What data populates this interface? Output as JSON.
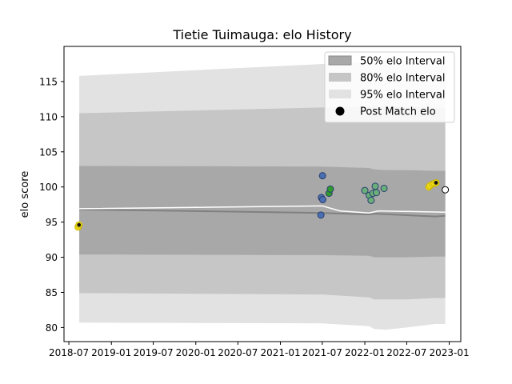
{
  "chart_data": {
    "type": "line",
    "title": "Tietie Tuimauga: elo History",
    "xlabel": "",
    "ylabel": "elo score",
    "xlim": [
      "2018-06-10",
      "2023-02-20"
    ],
    "ylim": [
      78,
      120
    ],
    "x_ticks": [
      "2018-07",
      "2019-01",
      "2019-07",
      "2020-01",
      "2020-07",
      "2021-01",
      "2021-07",
      "2022-01",
      "2022-07",
      "2023-01"
    ],
    "x_tick_labels": [
      "2018-07",
      "2019-01",
      "2019-07",
      "2020-01",
      "2020-07",
      "2021-01",
      "2021-07",
      "2022-01",
      "2022-07",
      "2023-01"
    ],
    "y_ticks": [
      80,
      85,
      90,
      95,
      100,
      105,
      110,
      115
    ],
    "grid": false,
    "legend": {
      "position": "top-right",
      "entries": [
        "50% elo Interval",
        "80% elo Interval",
        "95% elo Interval",
        "Post Match elo"
      ]
    },
    "colors": {
      "band_50": "#a8a8a8",
      "band_80": "#c6c6c6",
      "band_95": "#e2e2e2",
      "mean_line": "#808080",
      "highlight_line": "#ffffff",
      "point_yellow": "#f5e11c",
      "point_blue": "#4a6fb0",
      "point_green": "#6aae7a",
      "point_white": "#ffffff"
    },
    "bands": {
      "x": [
        "2018-08-15",
        "2021-07-01",
        "2022-01-20",
        "2022-02-10",
        "2022-04-01",
        "2022-07-01",
        "2022-11-01",
        "2022-12-15"
      ],
      "p95_low": [
        80.7,
        80.6,
        80.2,
        79.8,
        79.7,
        80.0,
        80.5,
        80.5
      ],
      "p95_high": [
        115.8,
        117.5,
        117.8,
        118.0,
        118.2,
        117.8,
        117.4,
        117.3
      ],
      "p80_low": [
        84.9,
        84.7,
        84.3,
        84.0,
        84.0,
        84.0,
        84.2,
        84.2
      ],
      "p80_high": [
        110.5,
        111.3,
        111.4,
        111.5,
        111.5,
        111.4,
        111.3,
        111.2
      ],
      "p50_low": [
        90.4,
        90.3,
        90.2,
        90.0,
        90.0,
        90.0,
        90.1,
        90.1
      ],
      "p50_high": [
        103.0,
        102.9,
        102.7,
        102.5,
        102.4,
        102.4,
        102.3,
        102.3
      ]
    },
    "mean_line": {
      "x": [
        "2018-08-15",
        "2021-07-01",
        "2022-01-20",
        "2022-02-10",
        "2022-11-01",
        "2022-12-15"
      ],
      "y": [
        96.8,
        96.3,
        96.1,
        96.2,
        95.8,
        95.9
      ]
    },
    "highlight_line": {
      "x": [
        "2018-08-15",
        "2021-07-01",
        "2021-09-15",
        "2022-01-20",
        "2022-03-01",
        "2022-12-15"
      ],
      "y": [
        96.9,
        97.3,
        96.6,
        96.3,
        96.6,
        96.4
      ]
    },
    "series": [
      {
        "name": "Post Match elo",
        "points": [
          {
            "x": "2018-08-10",
            "y": 94.3,
            "color": "#f5e11c"
          },
          {
            "x": "2018-08-14",
            "y": 94.6,
            "color": "#f5e11c",
            "center": "#111111"
          },
          {
            "x": "2021-06-25",
            "y": 96.0,
            "color": "#4a6fb0"
          },
          {
            "x": "2021-06-27",
            "y": 98.5,
            "color": "#4a6fb0"
          },
          {
            "x": "2021-07-03",
            "y": 98.2,
            "color": "#4a6fb0"
          },
          {
            "x": "2021-07-02",
            "y": 101.6,
            "color": "#4a6fb0"
          },
          {
            "x": "2021-07-30",
            "y": 99.1,
            "color": "#2e9a2e"
          },
          {
            "x": "2021-08-05",
            "y": 99.7,
            "color": "#2e9a2e"
          },
          {
            "x": "2022-01-01",
            "y": 99.5,
            "color": "#6aae7a"
          },
          {
            "x": "2022-01-20",
            "y": 98.8,
            "color": "#6aae7a"
          },
          {
            "x": "2022-01-28",
            "y": 98.1,
            "color": "#6aae7a"
          },
          {
            "x": "2022-02-05",
            "y": 99.1,
            "color": "#6aae7a"
          },
          {
            "x": "2022-02-15",
            "y": 100.1,
            "color": "#6aae7a"
          },
          {
            "x": "2022-02-20",
            "y": 99.2,
            "color": "#6aae7a"
          },
          {
            "x": "2022-03-25",
            "y": 99.8,
            "color": "#6aae7a"
          },
          {
            "x": "2022-10-05",
            "y": 100.0,
            "color": "#f5e11c"
          },
          {
            "x": "2022-10-10",
            "y": 100.2,
            "color": "#f5e11c"
          },
          {
            "x": "2022-10-20",
            "y": 100.4,
            "color": "#f5e11c"
          },
          {
            "x": "2022-10-28",
            "y": 100.5,
            "color": "#f5e11c"
          },
          {
            "x": "2022-11-05",
            "y": 100.6,
            "color": "#f5e11c",
            "center": "#111111"
          },
          {
            "x": "2022-12-15",
            "y": 99.6,
            "color": "#ffffff"
          }
        ]
      }
    ]
  }
}
